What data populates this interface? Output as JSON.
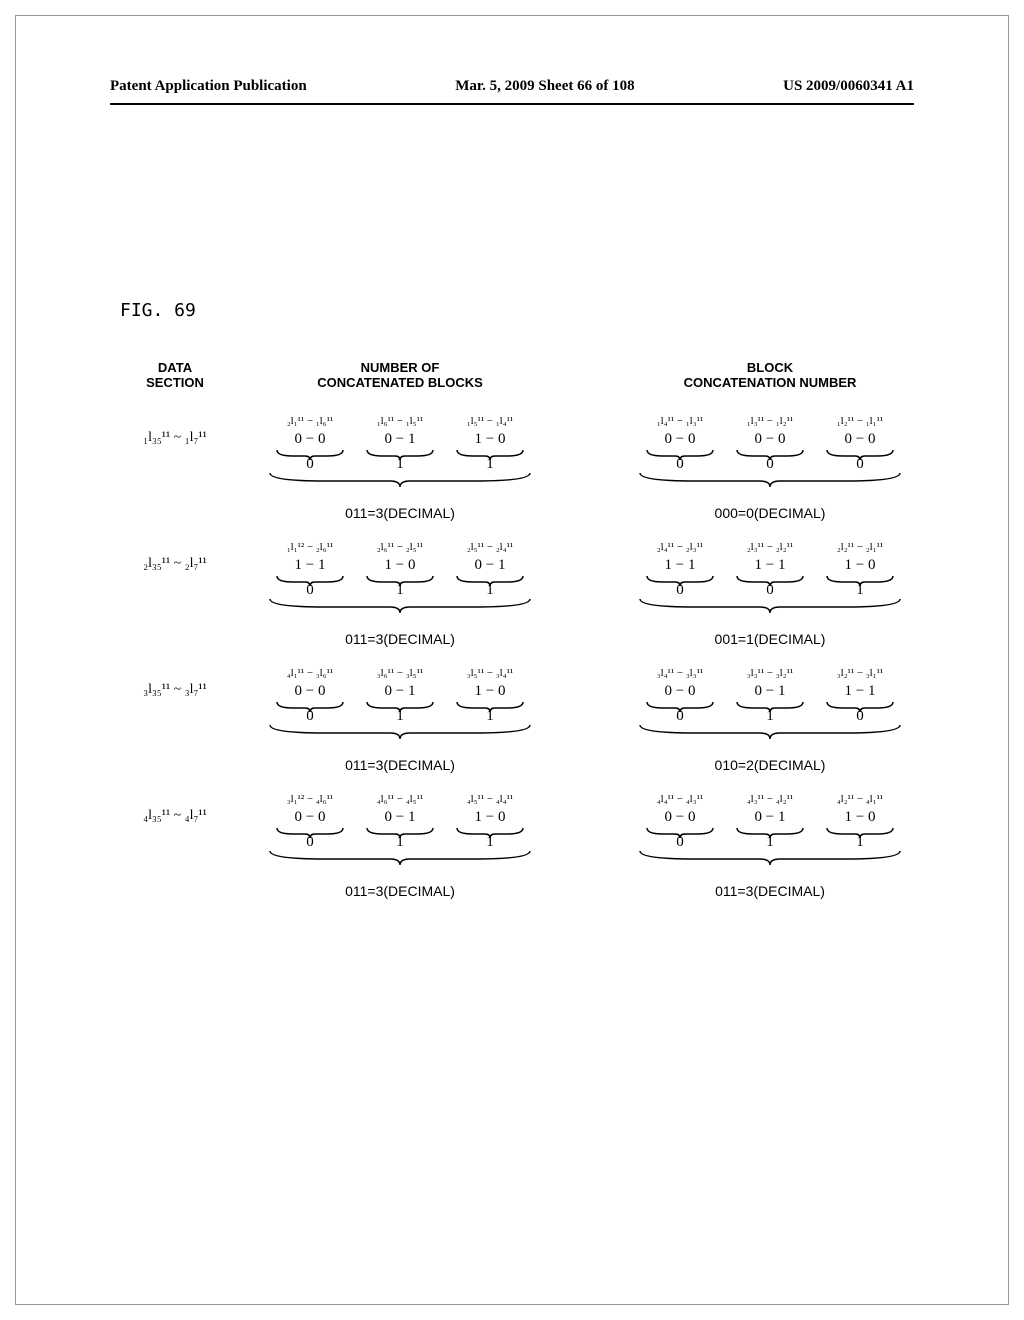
{
  "header": {
    "left": "Patent Application Publication",
    "center": "Mar. 5, 2009  Sheet 66 of 108",
    "right": "US 2009/0060341 A1"
  },
  "figure_label": "FIG. 69",
  "columns": {
    "h1": "DATA\nSECTION",
    "h2": "NUMBER OF\nCONCATENATED BLOCKS",
    "h3": "BLOCK\nCONCATENATION NUMBER"
  },
  "rows": [
    {
      "section": "₁l₃₅¹¹ ~ ₁l₇¹¹",
      "col2": {
        "top_labels": [
          "₂l₁¹¹ − ₁l₆¹¹",
          "₁l₆¹¹ − ₁l₅¹¹",
          "₁l₅¹¹ − ₁l₄¹¹"
        ],
        "bits": [
          "0  −  0",
          "0  −  1",
          "1  −  0"
        ],
        "mid_bits": [
          "0",
          "1",
          "1"
        ],
        "result": "011=3(DECIMAL)"
      },
      "col3": {
        "top_labels": [
          "₁l₄¹¹ − ₁l₃¹¹",
          "₁l₃¹¹ − ₁l₂¹¹",
          "₁l₂¹¹ − ₁l₁¹¹"
        ],
        "bits": [
          "0  −  0",
          "0  −  0",
          "0  −  0"
        ],
        "mid_bits": [
          "0",
          "0",
          "0"
        ],
        "result": "000=0(DECIMAL)"
      }
    },
    {
      "section": "₂l₃₅¹¹ ~ ₂l₇¹¹",
      "col2": {
        "top_labels": [
          "₁l₁¹² − ₂l₆¹¹",
          "₂l₆¹¹ − ₂l₅¹¹",
          "₂l₅¹¹ − ₂l₄¹¹"
        ],
        "bits": [
          "1  −  1",
          "1  −  0",
          "0  −  1"
        ],
        "mid_bits": [
          "0",
          "1",
          "1"
        ],
        "result": "011=3(DECIMAL)"
      },
      "col3": {
        "top_labels": [
          "₂l₄¹¹ − ₂l₃¹¹",
          "₂l₃¹¹ − ₂l₂¹¹",
          "₂l₂¹¹ − ₂l₁¹¹"
        ],
        "bits": [
          "1  −  1",
          "1  −  1",
          "1  −  0"
        ],
        "mid_bits": [
          "0",
          "0",
          "1"
        ],
        "result": "001=1(DECIMAL)"
      }
    },
    {
      "section": "₃l₃₅¹¹ ~ ₃l₇¹¹",
      "col2": {
        "top_labels": [
          "₄l₁¹¹ − ₃l₆¹¹",
          "₃l₆¹¹ − ₃l₅¹¹",
          "₃l₅¹¹ − ₃l₄¹¹"
        ],
        "bits": [
          "0  −  0",
          "0  −  1",
          "1  −  0"
        ],
        "mid_bits": [
          "0",
          "1",
          "1"
        ],
        "result": "011=3(DECIMAL)"
      },
      "col3": {
        "top_labels": [
          "₃l₄¹¹ − ₃l₃¹¹",
          "₃l₃¹¹ − ₃l₂¹¹",
          "₃l₂¹¹ − ₃l₁¹¹"
        ],
        "bits": [
          "0  −  0",
          "0  −  1",
          "1  −  1"
        ],
        "mid_bits": [
          "0",
          "1",
          "0"
        ],
        "result": "010=2(DECIMAL)"
      }
    },
    {
      "section": "₄l₃₅¹¹ ~ ₄l₇¹¹",
      "col2": {
        "top_labels": [
          "₃l₁¹² − ₄l₆¹¹",
          "₄l₆¹¹ − ₄l₅¹¹",
          "₄l₅¹¹ − ₄l₄¹¹"
        ],
        "bits": [
          "0  −  0",
          "0  −  1",
          "1  −  0"
        ],
        "mid_bits": [
          "0",
          "1",
          "1"
        ],
        "result": "011=3(DECIMAL)"
      },
      "col3": {
        "top_labels": [
          "₄l₄¹¹ − ₄l₃¹¹",
          "₄l₃¹¹ − ₄l₂¹¹",
          "₄l₂¹¹ − ₄l₁¹¹"
        ],
        "bits": [
          "0  −  0",
          "0  −  1",
          "1  −  0"
        ],
        "mid_bits": [
          "0",
          "1",
          "1"
        ],
        "result": "011=3(DECIMAL)"
      }
    }
  ]
}
